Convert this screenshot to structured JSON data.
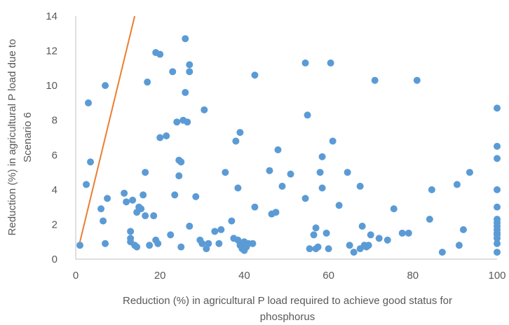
{
  "chart_data": {
    "type": "scatter",
    "title": "",
    "xlabel_lines": [
      "Reduction (%) in agricultural P load required to achieve good status for",
      "phosphorus"
    ],
    "ylabel_lines": [
      "Reduction (%) in agricultural P load due to",
      "Scenario 6"
    ],
    "xlim": [
      0,
      100
    ],
    "ylim": [
      0,
      14
    ],
    "xticks": [
      0,
      20,
      40,
      60,
      80,
      100
    ],
    "yticks": [
      0,
      2,
      4,
      6,
      8,
      10,
      12,
      14
    ],
    "grid": false,
    "legend": "none",
    "colors": {
      "points": "#5b9bd5",
      "reference_line": "#ed7d31",
      "axis": "#bfbfbf",
      "text": "#595959"
    },
    "reference_line": {
      "x": [
        1,
        14
      ],
      "y": [
        1,
        14
      ]
    },
    "points": [
      [
        1,
        0.8
      ],
      [
        2.5,
        4.3
      ],
      [
        3,
        9.0
      ],
      [
        3.5,
        5.6
      ],
      [
        6,
        2.9
      ],
      [
        6.5,
        2.2
      ],
      [
        7,
        0.9
      ],
      [
        7.5,
        3.5
      ],
      [
        7,
        10.0
      ],
      [
        11.5,
        3.8
      ],
      [
        12,
        3.3
      ],
      [
        13,
        1.6
      ],
      [
        13,
        1.2
      ],
      [
        13,
        1.0
      ],
      [
        13.5,
        3.4
      ],
      [
        14,
        0.8
      ],
      [
        14.5,
        0.7
      ],
      [
        14.5,
        2.7
      ],
      [
        15,
        3.0
      ],
      [
        15.5,
        2.9
      ],
      [
        16,
        3.7
      ],
      [
        16.5,
        5.0
      ],
      [
        16.5,
        2.5
      ],
      [
        17,
        10.2
      ],
      [
        17.5,
        0.8
      ],
      [
        18.5,
        2.5
      ],
      [
        19,
        1.1
      ],
      [
        19,
        11.9
      ],
      [
        19.5,
        0.9
      ],
      [
        20,
        11.8
      ],
      [
        20,
        7.0
      ],
      [
        21.5,
        7.1
      ],
      [
        22.5,
        1.4
      ],
      [
        23,
        10.8
      ],
      [
        23.5,
        3.7
      ],
      [
        24,
        7.9
      ],
      [
        24.5,
        4.8
      ],
      [
        24.5,
        5.7
      ],
      [
        25,
        5.6
      ],
      [
        25,
        0.7
      ],
      [
        25.5,
        8.0
      ],
      [
        26,
        12.7
      ],
      [
        26,
        9.6
      ],
      [
        26.5,
        7.9
      ],
      [
        27,
        11.2
      ],
      [
        27,
        10.8
      ],
      [
        27,
        1.9
      ],
      [
        28.5,
        3.6
      ],
      [
        29.5,
        1.1
      ],
      [
        30,
        0.9
      ],
      [
        30.5,
        8.6
      ],
      [
        31,
        0.6
      ],
      [
        31.5,
        0.9
      ],
      [
        33,
        1.6
      ],
      [
        34,
        0.9
      ],
      [
        34.5,
        1.7
      ],
      [
        35.5,
        5.0
      ],
      [
        37,
        2.2
      ],
      [
        37.5,
        1.2
      ],
      [
        38,
        6.8
      ],
      [
        38.5,
        1.1
      ],
      [
        38.5,
        4.1
      ],
      [
        39,
        7.3
      ],
      [
        39,
        0.8
      ],
      [
        39.5,
        0.6
      ],
      [
        40,
        0.5
      ],
      [
        40,
        1.0
      ],
      [
        40.5,
        0.7
      ],
      [
        41,
        0.9
      ],
      [
        42,
        0.9
      ],
      [
        42.5,
        3.0
      ],
      [
        42.5,
        10.6
      ],
      [
        46,
        5.1
      ],
      [
        46.5,
        2.6
      ],
      [
        47.5,
        2.7
      ],
      [
        48,
        6.3
      ],
      [
        49,
        4.2
      ],
      [
        51,
        4.9
      ],
      [
        54.5,
        11.3
      ],
      [
        54.5,
        3.5
      ],
      [
        55,
        8.3
      ],
      [
        55.5,
        0.6
      ],
      [
        56.5,
        1.4
      ],
      [
        57,
        0.6
      ],
      [
        57,
        1.8
      ],
      [
        57.5,
        0.7
      ],
      [
        58,
        5.0
      ],
      [
        58.5,
        4.1
      ],
      [
        58.5,
        5.9
      ],
      [
        59.5,
        1.5
      ],
      [
        60,
        0.6
      ],
      [
        60.5,
        11.3
      ],
      [
        61,
        6.8
      ],
      [
        62.5,
        3.1
      ],
      [
        64.5,
        5.0
      ],
      [
        65,
        0.8
      ],
      [
        66,
        0.4
      ],
      [
        67.5,
        4.2
      ],
      [
        67.5,
        0.6
      ],
      [
        68,
        1.9
      ],
      [
        68.5,
        0.8
      ],
      [
        69,
        0.7
      ],
      [
        69.5,
        0.8
      ],
      [
        70,
        1.4
      ],
      [
        71,
        10.3
      ],
      [
        72,
        1.2
      ],
      [
        74,
        1.1
      ],
      [
        75.5,
        2.9
      ],
      [
        77.5,
        1.5
      ],
      [
        79,
        1.5
      ],
      [
        81,
        10.3
      ],
      [
        84,
        2.3
      ],
      [
        84.5,
        4.0
      ],
      [
        87,
        0.4
      ],
      [
        90.5,
        4.3
      ],
      [
        91,
        0.8
      ],
      [
        92,
        1.7
      ],
      [
        93.5,
        5.0
      ],
      [
        100,
        8.7
      ],
      [
        100,
        6.5
      ],
      [
        100,
        5.8
      ],
      [
        100,
        4.0
      ],
      [
        100,
        3.0
      ],
      [
        100,
        2.3
      ],
      [
        100,
        2.1
      ],
      [
        100,
        1.9
      ],
      [
        100,
        1.7
      ],
      [
        100,
        1.5
      ],
      [
        100,
        1.4
      ],
      [
        100,
        1.2
      ],
      [
        100,
        0.9
      ],
      [
        100,
        0.4
      ]
    ]
  }
}
